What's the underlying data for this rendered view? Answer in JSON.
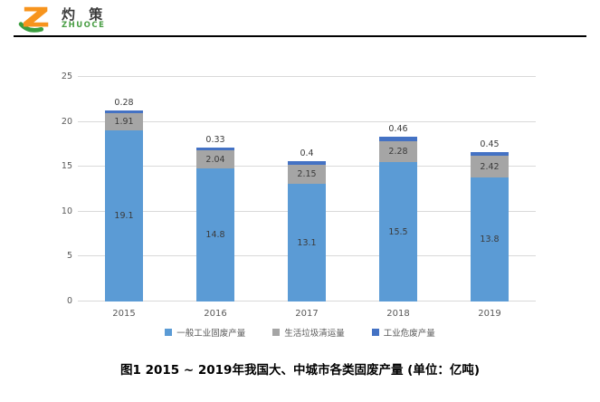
{
  "header": {
    "logo": {
      "brand_cn": "灼 策",
      "brand_en": "ZHUOCE",
      "icon": "z-swoosh-logo-icon",
      "colors": {
        "orange": "#F7941D",
        "green": "#3a9e3f"
      }
    }
  },
  "chart_data": {
    "type": "bar",
    "stacked": true,
    "categories": [
      "2015",
      "2016",
      "2017",
      "2018",
      "2019"
    ],
    "series": [
      {
        "name": "一般工业固废产量",
        "color": "#5B9BD5",
        "values": [
          19.1,
          14.8,
          13.1,
          15.5,
          13.8
        ],
        "labels": [
          "19.1",
          "14.8",
          "13.1",
          "15.5",
          "13.8"
        ]
      },
      {
        "name": "生活垃圾清运量",
        "color": "#A5A5A5",
        "values": [
          1.91,
          2.04,
          2.15,
          2.28,
          2.42
        ],
        "labels": [
          "1.91",
          "2.04",
          "2.15",
          "2.28",
          "2.42"
        ]
      },
      {
        "name": "工业危废产量",
        "color": "#4472C4",
        "values": [
          0.28,
          0.33,
          0.4,
          0.46,
          0.45
        ],
        "labels": [
          "0.28",
          "0.33",
          "0.4",
          "0.46",
          "0.45"
        ]
      }
    ],
    "y_ticks": [
      0,
      5,
      10,
      15,
      20,
      25
    ],
    "ylim": [
      0,
      25
    ],
    "grid": true,
    "gridline_color": "#d9d9d9",
    "legend_position": "bottom",
    "axis_label_color": "#595959"
  },
  "caption": "图1   2015 ~ 2019年我国大、中城市各类固废产量 (单位：亿吨)"
}
